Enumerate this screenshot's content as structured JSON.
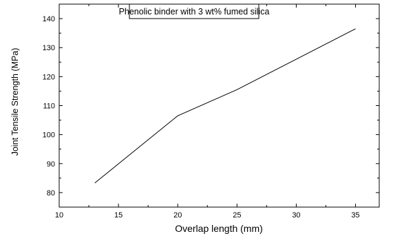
{
  "chart_data": {
    "type": "line",
    "legend": "Phenolic binder with 3 wt% fumed silica",
    "legend_position": "top-right",
    "xlabel": "Overlap length (mm)",
    "ylabel": "Joint Tensile Strength (MPa)",
    "xlim": [
      10,
      37
    ],
    "ylim": [
      75,
      145
    ],
    "xticks": [
      "10",
      "15",
      "20",
      "25",
      "30",
      "35"
    ],
    "yticks": [
      "80",
      "90",
      "100",
      "110",
      "120",
      "130",
      "140"
    ],
    "grid": false,
    "series": [
      {
        "color": "#000000",
        "x": [
          13,
          20,
          25,
          35
        ],
        "y": [
          83.3,
          106.5,
          115.5,
          136.5
        ]
      }
    ]
  }
}
